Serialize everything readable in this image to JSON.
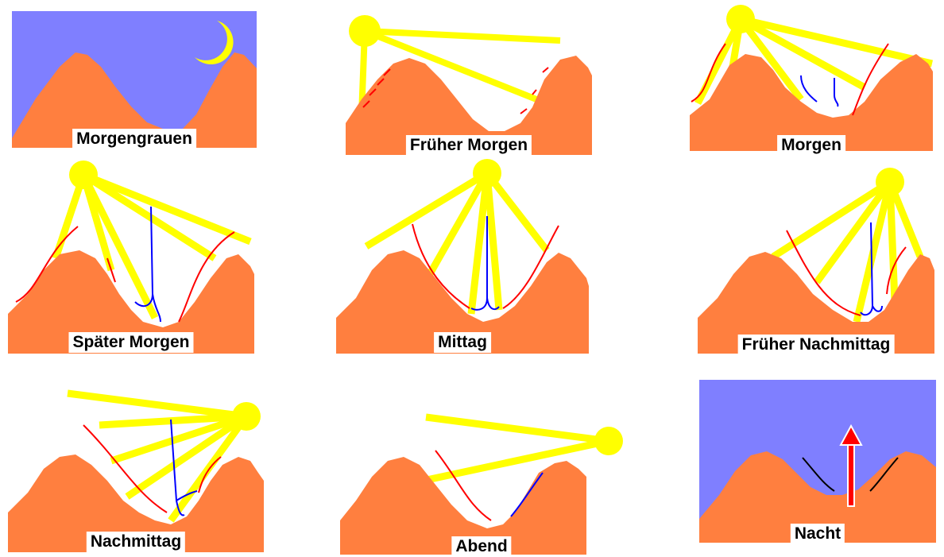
{
  "colors": {
    "sky": "#7f7fff",
    "mountain": "#ff7f3f",
    "sun": "#ffff00",
    "warm_wind": "#ff0000",
    "cool_wind": "#0000ff",
    "night_flow": "#000000"
  },
  "panels": [
    {
      "caption": "Morgengrauen",
      "sky": true,
      "moon": true
    },
    {
      "caption": "Früher Morgen",
      "sky": false,
      "sun": true
    },
    {
      "caption": "Morgen",
      "sky": false,
      "sun": true
    },
    {
      "caption": "Später Morgen",
      "sky": false,
      "sun": true
    },
    {
      "caption": "Mittag",
      "sky": false,
      "sun": true
    },
    {
      "caption": "Früher Nachmittag",
      "sky": false,
      "sun": true
    },
    {
      "caption": "Nachmittag",
      "sky": false,
      "sun": true
    },
    {
      "caption": "Abend",
      "sky": false,
      "sun": true
    },
    {
      "caption": "Nacht",
      "sky": true,
      "moon": true
    }
  ]
}
